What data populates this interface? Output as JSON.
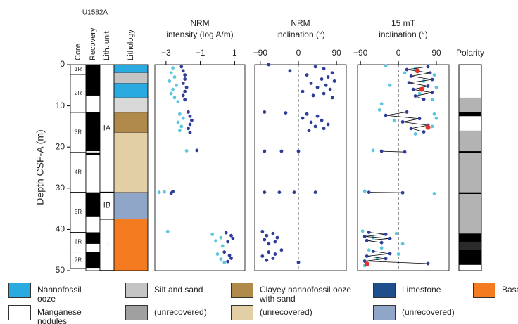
{
  "site": "U1582A",
  "columns": {
    "headers": [
      "Core",
      "Recovery",
      "Lith. unit",
      "Lithology"
    ],
    "cores": [
      {
        "name": "1R",
        "top": 0,
        "bottom": 2.4
      },
      {
        "name": "2R",
        "top": 2.4,
        "bottom": 11.6
      },
      {
        "name": "3R",
        "top": 11.6,
        "bottom": 21.3
      },
      {
        "name": "4R",
        "top": 21.3,
        "bottom": 31
      },
      {
        "name": "5R",
        "top": 31,
        "bottom": 40.7
      },
      {
        "name": "6R",
        "top": 40.7,
        "bottom": 45.5
      },
      {
        "name": "7R",
        "top": 45.5,
        "bottom": 49.5
      }
    ],
    "recovery": [
      [
        0,
        7.5
      ],
      [
        11.6,
        21
      ],
      [
        21.3,
        22
      ],
      [
        31,
        37
      ],
      [
        40.7,
        43.5
      ],
      [
        45.5,
        49.5
      ]
    ],
    "units": [
      {
        "name": "IA",
        "top": 0,
        "bottom": 31
      },
      {
        "name": "IB",
        "top": 31,
        "bottom": 37.5
      },
      {
        "name": "II",
        "top": 37.5,
        "bottom": 50
      }
    ],
    "lithology": [
      {
        "top": 0,
        "bottom": 2,
        "color": "#29aae1"
      },
      {
        "top": 2,
        "bottom": 4.5,
        "color": "#c4c4c4"
      },
      {
        "top": 4.5,
        "bottom": 8,
        "color": "#29aae1"
      },
      {
        "top": 8,
        "bottom": 11.6,
        "color": "#d9d9d9"
      },
      {
        "top": 11.6,
        "bottom": 16.5,
        "color": "#b08a4a"
      },
      {
        "top": 16.5,
        "bottom": 31,
        "color": "#e3cfa6"
      },
      {
        "top": 31,
        "bottom": 37.5,
        "color": "#8fa6c8"
      },
      {
        "top": 37.5,
        "bottom": 50,
        "color": "#f47b20"
      }
    ]
  },
  "depth_axis": {
    "label": "Depth CSF-A (m)",
    "ylim": [
      0,
      50
    ],
    "yticks": [
      0,
      10,
      20,
      30,
      40,
      50
    ]
  },
  "chart_data": [
    {
      "type": "scatter",
      "title": [
        "NRM",
        "intensity (log A/m)"
      ],
      "xlim": [
        -3.65,
        1.6
      ],
      "xticks": [
        {
          "value": -3,
          "label": "−3"
        },
        {
          "value": -1,
          "label": "−1"
        },
        1
      ],
      "series": [
        {
          "color": "#2e3d99",
          "y": [
            0.5,
            1.5,
            2.5,
            3.5,
            4.5,
            5.5,
            6.5,
            7.5,
            8.5,
            11.5,
            12.5,
            13.5,
            14.5,
            15.5,
            16.5,
            20.8,
            30.8,
            31.2,
            40.8,
            41.5,
            42.2,
            43,
            45.5,
            46.3,
            47,
            47.8
          ],
          "x": [
            -2.1,
            -2.0,
            -1.9,
            -1.9,
            -2.0,
            -1.8,
            -1.9,
            -2.0,
            -1.9,
            -1.7,
            -1.6,
            -1.5,
            -1.6,
            -1.7,
            -1.6,
            -1.2,
            -2.6,
            -2.7,
            0.5,
            0.8,
            0.9,
            0.6,
            0.4,
            0.7,
            0.8,
            0.6
          ]
        },
        {
          "color": "#5bc7df",
          "y": [
            0.8,
            2,
            3,
            4,
            5,
            6,
            7,
            8,
            9,
            12,
            13,
            14,
            15,
            16,
            20.9,
            31,
            30.9,
            40.5,
            41.2,
            42,
            42.8,
            44,
            46,
            47.2,
            48
          ],
          "x": [
            -2.6,
            -2.7,
            -2.5,
            -2.8,
            -2.4,
            -2.6,
            -2.7,
            -2.5,
            -2.3,
            -2.2,
            -2.0,
            -2.3,
            -2.1,
            -2.2,
            -1.8,
            -3.4,
            -3.1,
            -2.9,
            -0.3,
            0.2,
            -0.1,
            0.3,
            0.0,
            0.2,
            0.4
          ]
        }
      ]
    },
    {
      "type": "scatter",
      "title": [
        "NRM",
        "inclination (°)"
      ],
      "xlim": [
        -103,
        113
      ],
      "xticks": [
        {
          "value": -90,
          "label": "−90"
        },
        0,
        90
      ],
      "refline": 0,
      "series": [
        {
          "color": "#2e3d99",
          "y": [
            0,
            0.5,
            1,
            1.5,
            2,
            2.5,
            3,
            3.5,
            4,
            4.5,
            5,
            5.5,
            6,
            6.5,
            7,
            7.5,
            8,
            11.5,
            12,
            12.5,
            13,
            13.5,
            14,
            14.5,
            15,
            15.5,
            16,
            11.7,
            21,
            21,
            21,
            31,
            31,
            31,
            31,
            40.5,
            41,
            41.5,
            42,
            42.5,
            43,
            43.5,
            45,
            45.5,
            46,
            46.5,
            47,
            47.5,
            48
          ],
          "x": [
            -70,
            40,
            60,
            -20,
            80,
            20,
            70,
            55,
            85,
            30,
            65,
            45,
            75,
            10,
            60,
            35,
            80,
            -80,
            20,
            45,
            10,
            55,
            30,
            70,
            40,
            60,
            25,
            -30,
            -80,
            -40,
            0,
            -80,
            -45,
            -10,
            40,
            -85,
            -60,
            -75,
            -50,
            -80,
            -55,
            -70,
            -40,
            -70,
            -55,
            -85,
            -60,
            -75,
            0
          ]
        }
      ]
    },
    {
      "type": "scatter",
      "title": [
        "15 mT",
        "inclination (°)"
      ],
      "xlim": [
        -97,
        120
      ],
      "xticks": [
        {
          "value": -90,
          "label": "−90"
        },
        0,
        90
      ],
      "refline": 0,
      "series": [
        {
          "color": "#5bc7df",
          "y": [
            0.3,
            1,
            2.5,
            4,
            5.5,
            7,
            8.5,
            9.5,
            11,
            12,
            13.5,
            15,
            16.8,
            20.8,
            30.7,
            31.3,
            40.4,
            41,
            42,
            43.5,
            44.5,
            45,
            46,
            47,
            48.8,
            2,
            5,
            13
          ],
          "x": [
            -30,
            40,
            85,
            60,
            90,
            50,
            80,
            -40,
            -45,
            85,
            -10,
            80,
            40,
            -60,
            -80,
            85,
            -85,
            -5,
            -60,
            10,
            -40,
            -70,
            0,
            -50,
            -80,
            15,
            -20,
            90
          ]
        },
        {
          "color": "#2e3d99",
          "line": true,
          "y": [
            0.5,
            1.2,
            2,
            2.8,
            3.6,
            4.4,
            5.2,
            6,
            6.8,
            7.6,
            8.4,
            null,
            11.5,
            12.3,
            13.1,
            13.9,
            14.7,
            15.5,
            16.3,
            null,
            21,
            21.2,
            null,
            31,
            31.1,
            null,
            40.7,
            41.2,
            41.7,
            42.2,
            42.7,
            43.2,
            null,
            45.3,
            45.9,
            46.5,
            47.1,
            47.7,
            48.3
          ],
          "x": [
            70,
            20,
            75,
            30,
            80,
            25,
            70,
            35,
            80,
            40,
            60,
            null,
            20,
            -30,
            50,
            10,
            70,
            30,
            60,
            null,
            -40,
            15,
            null,
            -70,
            10,
            null,
            -70,
            -30,
            -80,
            -20,
            -75,
            -40,
            null,
            -60,
            -20,
            -75,
            -30,
            -80,
            70
          ]
        },
        {
          "color": "#e8302a",
          "y": [
            1.5,
            6,
            15.2,
            48.4
          ],
          "x": [
            45,
            55,
            70,
            -75
          ]
        }
      ]
    }
  ],
  "polarity": {
    "title": "Polarity",
    "bands": [
      {
        "top": 8,
        "bottom": 11.5,
        "color": "#b3b3b3"
      },
      {
        "top": 11.5,
        "bottom": 12.5,
        "color": "#000000"
      },
      {
        "top": 16,
        "bottom": 21,
        "color": "#b3b3b3"
      },
      {
        "top": 21,
        "bottom": 21.4,
        "color": "#000000"
      },
      {
        "top": 21.4,
        "bottom": 31,
        "color": "#b3b3b3"
      },
      {
        "top": 31,
        "bottom": 31.4,
        "color": "#000000"
      },
      {
        "top": 31.4,
        "bottom": 41,
        "color": "#b3b3b3"
      },
      {
        "top": 41,
        "bottom": 43,
        "color": "#000000"
      },
      {
        "top": 43,
        "bottom": 45,
        "color": "#2a2a2a"
      },
      {
        "top": 45,
        "bottom": 48.6,
        "color": "#000000"
      }
    ]
  },
  "legend": [
    {
      "label": "Nannofossil ooze",
      "color": "#29aae1"
    },
    {
      "label": "Manganese nodules",
      "color": "#ffffff"
    },
    {
      "label": "Silt and sand",
      "color": "#c4c4c4"
    },
    {
      "label": "(unrecovered)",
      "color": "#a0a0a0"
    },
    {
      "label": "Clayey nannofossil ooze with sand",
      "color": "#b08a4a"
    },
    {
      "label": "(unrecovered)",
      "color": "#e3cfa6"
    },
    {
      "label": "Limestone",
      "color": "#1f4e8c"
    },
    {
      "label": "(unrecovered)",
      "color": "#8fa6c8"
    },
    {
      "label": "Basalt",
      "color": "#f47b20"
    }
  ]
}
